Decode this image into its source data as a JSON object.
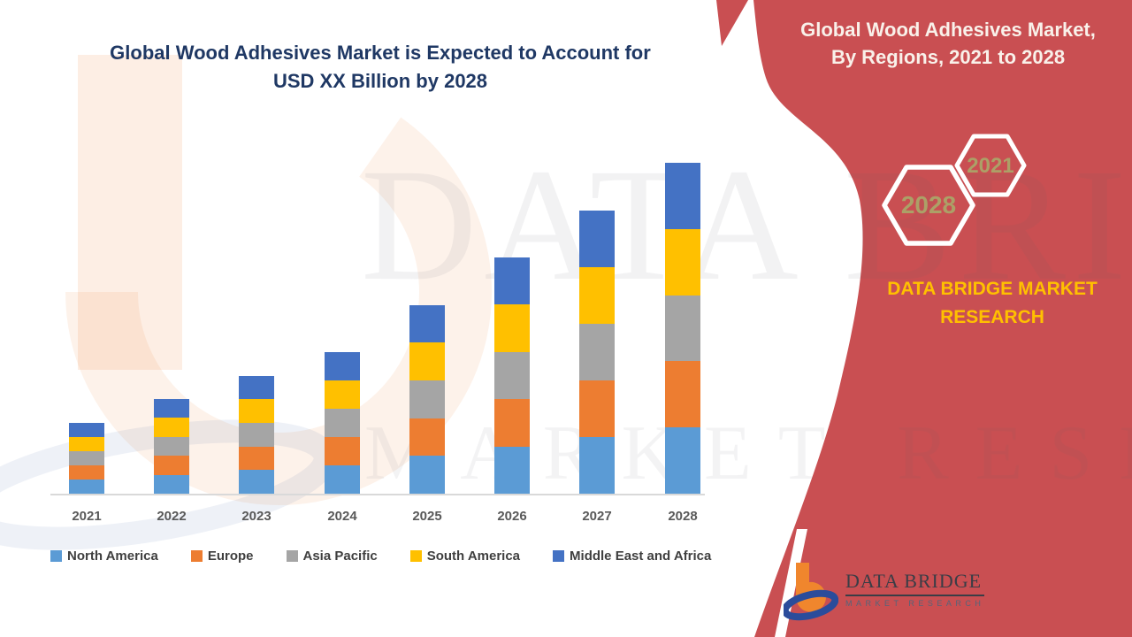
{
  "left_panel": {
    "title_line1": "Global Wood Adhesives Market is Expected to Account for",
    "title_line2": "USD XX Billion by 2028"
  },
  "chart_data": {
    "type": "bar",
    "stacked": true,
    "title": "Global Wood Adhesives Market is Expected to Account for USD XX Billion by 2028",
    "categories": [
      "2021",
      "2022",
      "2023",
      "2024",
      "2025",
      "2026",
      "2027",
      "2028"
    ],
    "series": [
      {
        "name": "North America",
        "color": "#5B9BD5",
        "values": [
          3,
          4,
          5,
          6,
          8,
          10,
          12,
          14
        ]
      },
      {
        "name": "Europe",
        "color": "#ED7D31",
        "values": [
          3,
          4,
          5,
          6,
          8,
          10,
          12,
          14
        ]
      },
      {
        "name": "Asia Pacific",
        "color": "#A5A5A5",
        "values": [
          3,
          4,
          5,
          6,
          8,
          10,
          12,
          14
        ]
      },
      {
        "name": "South America",
        "color": "#FFC000",
        "values": [
          3,
          4,
          5,
          6,
          8,
          10,
          12,
          14
        ]
      },
      {
        "name": "Middle East and Africa",
        "color": "#4472C4",
        "values": [
          3,
          4,
          5,
          6,
          8,
          10,
          12,
          14
        ]
      }
    ],
    "units": "relative units (actual values masked as USD XX Billion)",
    "year_totals": [
      15,
      20,
      25,
      30,
      40,
      50,
      60,
      70
    ],
    "xlabel": "",
    "ylabel": "",
    "y_axis_shown": false,
    "grid": false,
    "legend_position": "bottom"
  },
  "right_panel": {
    "heading_line1": "Global Wood Adhesives Market,",
    "heading_line2": "By Regions, 2021 to 2028",
    "hexagon_small_label": "2021",
    "hexagon_large_label": "2028",
    "brand_line1": "DATA BRIDGE MARKET",
    "brand_line2": "RESEARCH",
    "logo_name": "DATA BRIDGE",
    "logo_sub": "MARKET RESEARCH",
    "colors": {
      "panel_red": "#C94F52",
      "brand_gold": "#FFC000",
      "hex_label_khaki": "#ACA067",
      "heading_cream": "#F9F1EA"
    }
  },
  "watermark": {
    "line1": "DATA BRIDGE",
    "line2": "MARKET RESEARCH"
  }
}
